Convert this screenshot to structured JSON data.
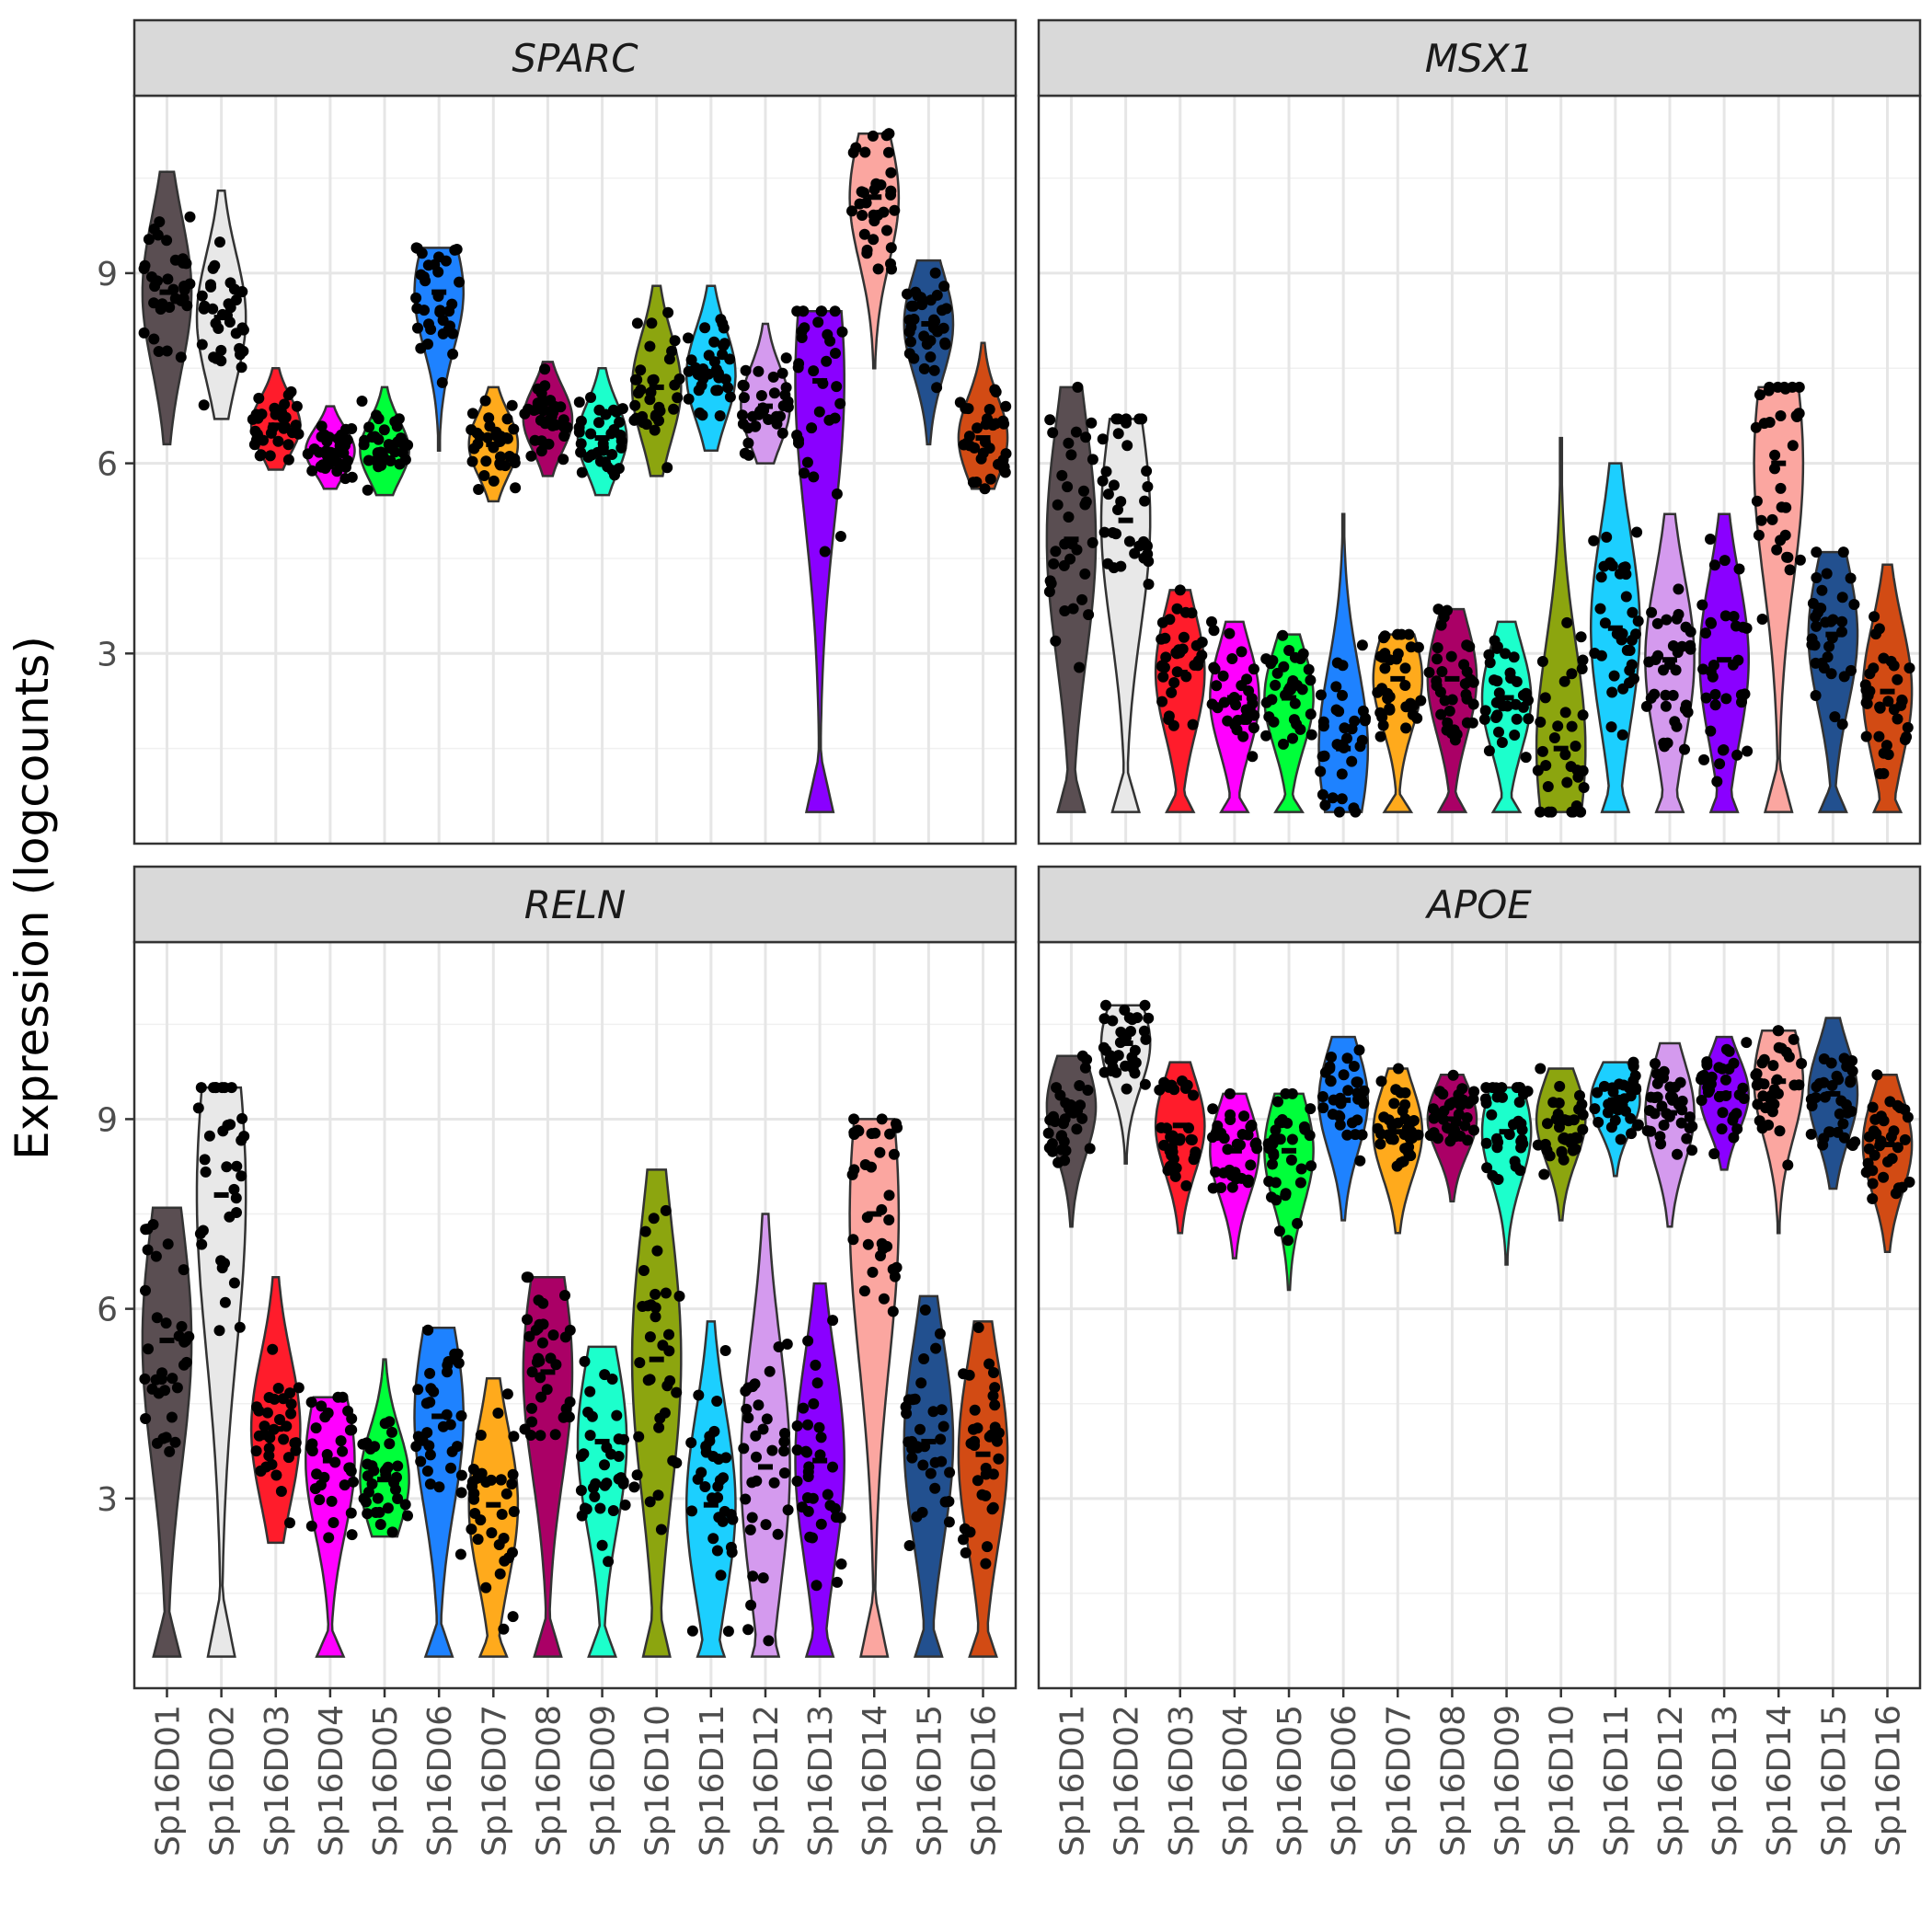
{
  "chart_data": {
    "type": "violin",
    "ylabel": "Expression (logcounts)",
    "ylim": [
      0,
      11.8
    ],
    "yticks": [
      3,
      6,
      9
    ],
    "yminor": [
      1.5,
      4.5,
      7.5,
      10.5
    ],
    "grid": true,
    "categories": [
      "Sp16D01",
      "Sp16D02",
      "Sp16D03",
      "Sp16D04",
      "Sp16D05",
      "Sp16D06",
      "Sp16D07",
      "Sp16D08",
      "Sp16D09",
      "Sp16D10",
      "Sp16D11",
      "Sp16D12",
      "Sp16D13",
      "Sp16D14",
      "Sp16D15",
      "Sp16D16"
    ],
    "colors": [
      "#5a4e52",
      "#e8e8e8",
      "#ff1c2b",
      "#ff00ff",
      "#00ff3a",
      "#1e82ff",
      "#ffaa1c",
      "#aa0066",
      "#1cffcc",
      "#8ca50f",
      "#1ccfff",
      "#d49aee",
      "#8a00ff",
      "#fba6a0",
      "#22508f",
      "#d24b14"
    ],
    "panels": [
      {
        "gene": "SPARC",
        "min": [
          6.3,
          6.7,
          5.9,
          5.6,
          5.5,
          6.2,
          5.4,
          5.8,
          5.5,
          5.8,
          6.2,
          6.0,
          0.5,
          7.5,
          6.3,
          5.6
        ],
        "max": [
          10.6,
          10.3,
          7.5,
          6.9,
          7.2,
          9.4,
          7.2,
          7.6,
          7.5,
          8.8,
          8.8,
          8.2,
          8.4,
          11.2,
          9.2,
          7.9
        ],
        "median": [
          8.7,
          8.3,
          6.6,
          6.2,
          6.2,
          8.7,
          6.3,
          6.7,
          6.4,
          7.2,
          7.4,
          6.9,
          7.3,
          10.2,
          8.2,
          6.4
        ]
      },
      {
        "gene": "MSX1",
        "min": [
          0.5,
          0.5,
          0.5,
          0.5,
          0.5,
          0.5,
          0.5,
          0.5,
          0.5,
          0.5,
          0.5,
          0.5,
          0.5,
          0.5,
          0.5,
          0.5
        ],
        "max": [
          7.2,
          6.7,
          4.0,
          3.5,
          3.3,
          5.2,
          3.3,
          3.7,
          3.5,
          6.4,
          6.0,
          5.2,
          5.2,
          7.2,
          4.6,
          4.4
        ],
        "median": [
          4.8,
          5.1,
          2.7,
          2.3,
          2.3,
          1.5,
          2.6,
          2.6,
          2.3,
          1.5,
          3.4,
          2.9,
          2.9,
          6.0,
          3.3,
          2.4
        ]
      },
      {
        "gene": "RELN",
        "min": [
          0.5,
          0.5,
          2.3,
          0.5,
          2.4,
          0.5,
          0.5,
          0.5,
          0.5,
          0.5,
          0.5,
          0.5,
          0.5,
          0.5,
          0.5,
          0.5
        ],
        "max": [
          7.6,
          9.5,
          6.5,
          4.6,
          5.2,
          5.7,
          4.9,
          6.5,
          5.4,
          8.2,
          5.8,
          7.5,
          6.4,
          9.0,
          6.2,
          5.8
        ],
        "median": [
          5.5,
          7.8,
          4.1,
          3.6,
          3.3,
          4.3,
          2.9,
          5.0,
          3.9,
          5.2,
          2.9,
          3.5,
          3.6,
          7.5,
          3.9,
          3.7
        ]
      },
      {
        "gene": "APOE",
        "min": [
          7.3,
          8.3,
          7.2,
          6.8,
          6.3,
          7.4,
          7.2,
          7.7,
          6.7,
          7.4,
          8.1,
          7.3,
          8.2,
          7.2,
          7.9,
          6.9
        ],
        "max": [
          10.0,
          10.8,
          9.9,
          9.4,
          9.4,
          10.3,
          9.8,
          9.7,
          9.5,
          9.8,
          9.9,
          10.2,
          10.3,
          10.4,
          10.6,
          9.7
        ],
        "median": [
          9.2,
          10.2,
          8.9,
          8.5,
          8.5,
          9.3,
          8.8,
          9.0,
          8.8,
          9.0,
          9.3,
          9.1,
          9.4,
          9.6,
          9.4,
          8.6
        ]
      }
    ]
  }
}
